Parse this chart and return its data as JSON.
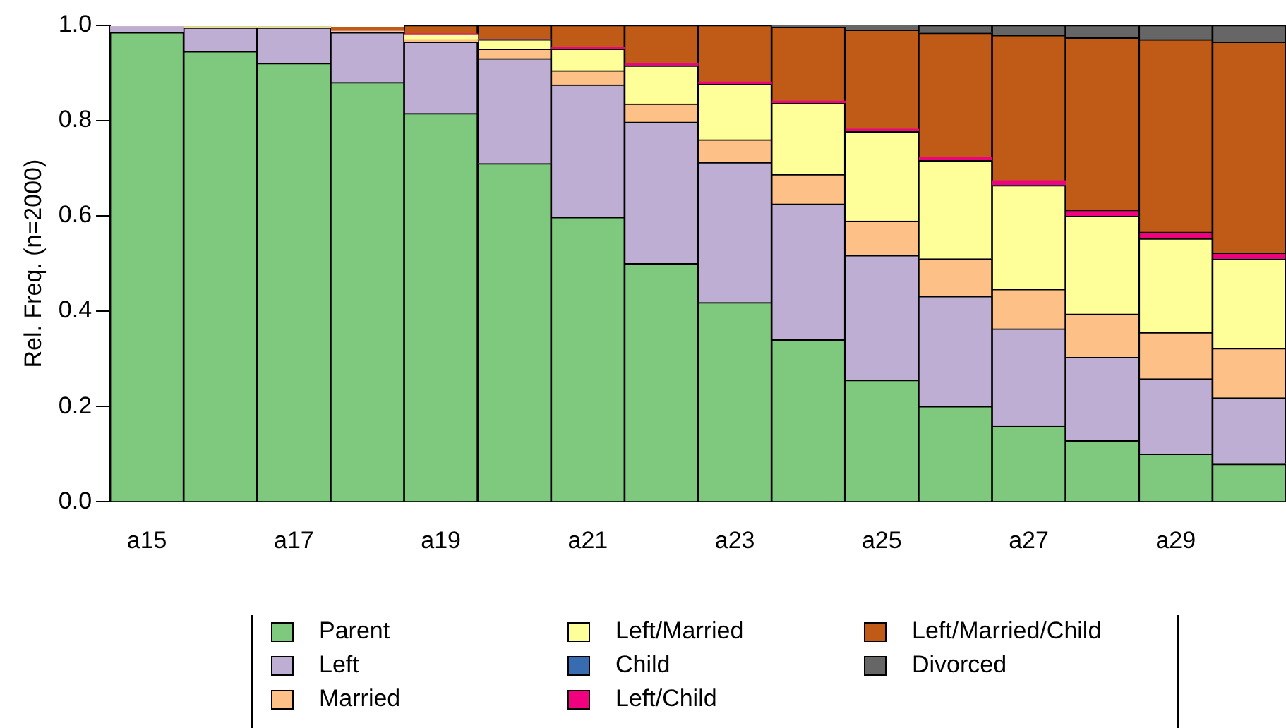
{
  "chart_data": {
    "type": "bar",
    "stacked": true,
    "ylabel": "Rel. Freq. (n=2000)",
    "categories": [
      "a15",
      null,
      "a17",
      null,
      "a19",
      null,
      "a21",
      null,
      "a23",
      null,
      "a25",
      null,
      "a27",
      null,
      "a29",
      null
    ],
    "ylim": [
      0,
      1
    ],
    "yticks": [
      {
        "value": 0,
        "label": "0.0"
      },
      {
        "value": 0.2,
        "label": "0.2"
      },
      {
        "value": 0.4,
        "label": "0.4"
      },
      {
        "value": 0.6,
        "label": "0.6"
      },
      {
        "value": 0.8,
        "label": "0.8"
      },
      {
        "value": 1,
        "label": "1.0"
      }
    ],
    "grid": false,
    "legend": "bottom",
    "series": [
      {
        "name": "Parent",
        "color": "#7fc97f",
        "values": [
          0.985,
          0.945,
          0.92,
          0.88,
          0.815,
          0.71,
          0.597,
          0.5,
          0.418,
          0.34,
          0.255,
          0.2,
          0.158,
          0.128,
          0.1,
          0.079
        ]
      },
      {
        "name": "Left",
        "color": "#beaed4",
        "values": [
          0.012,
          0.05,
          0.075,
          0.105,
          0.15,
          0.22,
          0.278,
          0.297,
          0.294,
          0.285,
          0.262,
          0.231,
          0.205,
          0.175,
          0.158,
          0.139
        ]
      },
      {
        "name": "Married",
        "color": "#fdc086",
        "values": [
          0,
          0,
          0,
          0.003,
          0.005,
          0.02,
          0.03,
          0.038,
          0.048,
          0.062,
          0.072,
          0.079,
          0.083,
          0.091,
          0.097,
          0.104
        ]
      },
      {
        "name": "Left/Married",
        "color": "#ffff99",
        "values": [
          0,
          0.002,
          0.002,
          null,
          0.01,
          0.02,
          0.045,
          0.08,
          0.116,
          0.149,
          0.188,
          0.206,
          0.218,
          0.205,
          0.197,
          0.187
        ]
      },
      {
        "name": "Child",
        "color": "#386cb0",
        "values": [
          0,
          0,
          0,
          0,
          0,
          0,
          0,
          0,
          0,
          0,
          0,
          0,
          0,
          0,
          0,
          0
        ]
      },
      {
        "name": "Left/Child",
        "color": "#f0027f",
        "values": [
          0,
          0,
          0,
          0,
          0.002,
          0,
          0.003,
          0.005,
          0.005,
          0.005,
          0.005,
          0.006,
          0.01,
          0.013,
          0.014,
          0.013
        ]
      },
      {
        "name": "Left/Married/Child",
        "color": "#bf5b17",
        "values": [
          null,
          null,
          null,
          0.008,
          0.018,
          0.03,
          0.047,
          0.08,
          0.119,
          0.155,
          0.208,
          0.262,
          0.305,
          0.362,
          0.404,
          0.443
        ]
      },
      {
        "name": "Divorced",
        "color": "#666666",
        "values": [
          0,
          0,
          0,
          0,
          0,
          0,
          0,
          0,
          0,
          0.004,
          0.01,
          0.016,
          0.021,
          0.026,
          0.03,
          0.035
        ]
      }
    ]
  }
}
